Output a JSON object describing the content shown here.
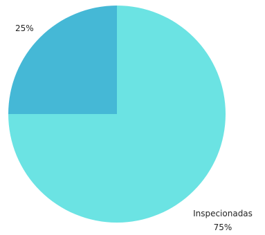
{
  "chart_data": {
    "type": "pie",
    "title": "",
    "slices": [
      {
        "label": "",
        "value": 25,
        "value_label": "25%",
        "color": "#45B8D6"
      },
      {
        "label": "Inspecionadas",
        "value": 75,
        "value_label": "75%",
        "color": "#6BE3E3"
      }
    ]
  }
}
